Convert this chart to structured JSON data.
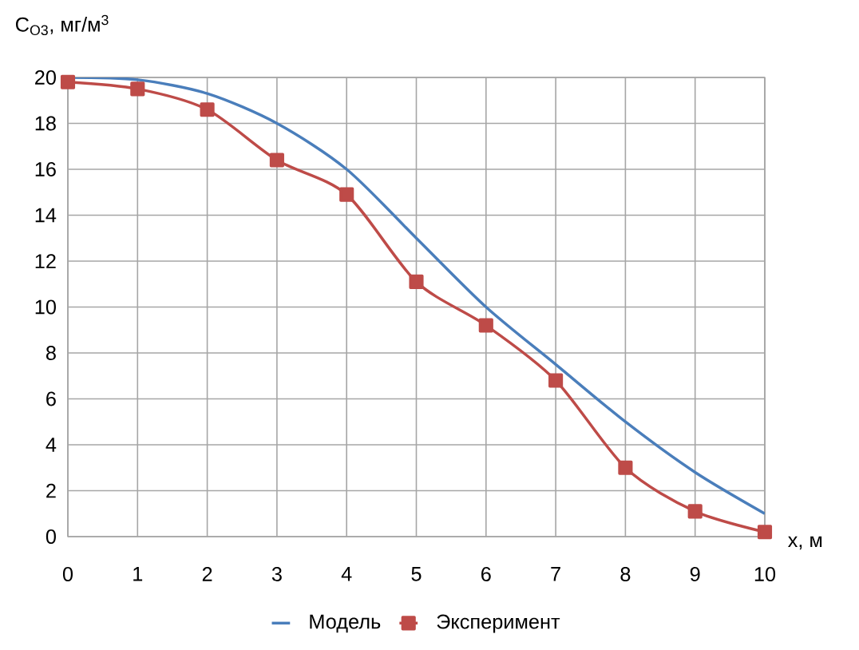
{
  "chart_data": {
    "type": "line",
    "ylabel": "C$_{O3}$, мг/м$^{3}$",
    "xlabel": "x, м",
    "x": [
      0,
      1,
      2,
      3,
      4,
      5,
      6,
      7,
      8,
      9,
      10
    ],
    "series": [
      {
        "name": "Модель",
        "color": "#4a7ebb",
        "marker": "none",
        "values": [
          20,
          19.9,
          19.3,
          18,
          16,
          13,
          10,
          7.5,
          5,
          2.8,
          1.0
        ]
      },
      {
        "name": "Эксперимент",
        "color": "#be4b48",
        "marker": "square",
        "values": [
          19.8,
          19.5,
          18.6,
          16.4,
          14.9,
          11.1,
          9.2,
          6.8,
          3.0,
          1.1,
          0.2
        ]
      }
    ],
    "xlim": [
      0,
      10
    ],
    "xticks": [
      0,
      1,
      2,
      3,
      4,
      5,
      6,
      7,
      8,
      9,
      10
    ],
    "ylim": [
      0,
      20
    ],
    "yticks": [
      0,
      2,
      4,
      6,
      8,
      10,
      12,
      14,
      16,
      18,
      20
    ],
    "grid": true,
    "legend": "bottom",
    "line_style": "solid"
  }
}
